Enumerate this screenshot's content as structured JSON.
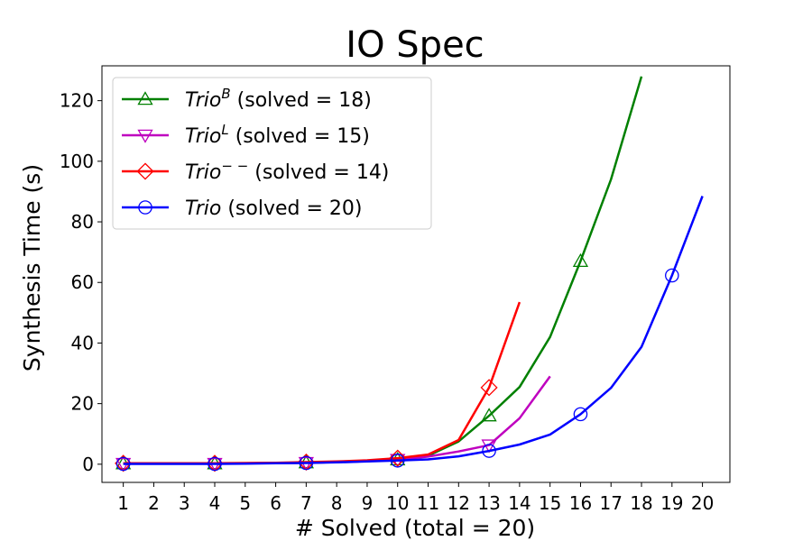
{
  "chart_data": {
    "type": "line",
    "title": "IO Spec",
    "xlabel": "# Solved (total = 20)",
    "ylabel": "Synthesis Time (s)",
    "xlim": [
      0.3,
      20.9
    ],
    "ylim": [
      -6,
      131.5
    ],
    "x_ticks": [
      1,
      2,
      3,
      4,
      5,
      6,
      7,
      8,
      9,
      10,
      11,
      12,
      13,
      14,
      15,
      16,
      17,
      18,
      19,
      20
    ],
    "y_ticks": [
      0,
      20,
      40,
      60,
      80,
      100,
      120
    ],
    "grid": false,
    "legend_position": "top-left",
    "series": [
      {
        "name": "Trio^B (solved = 18)",
        "name_base": "Trio",
        "name_sup": "B",
        "name_rest": " (solved = 18)",
        "color": "#008000",
        "marker": "triangle-up",
        "marker_every": 3,
        "x": [
          1,
          2,
          3,
          4,
          5,
          6,
          7,
          8,
          9,
          10,
          11,
          12,
          13,
          14,
          15,
          16,
          17,
          18
        ],
        "y": [
          0.2,
          0.2,
          0.2,
          0.2,
          0.3,
          0.4,
          0.5,
          0.7,
          1.0,
          1.5,
          2.8,
          7.5,
          16,
          25.5,
          42,
          67,
          94,
          128
        ]
      },
      {
        "name": "Trio^L (solved = 15)",
        "name_base": "Trio",
        "name_sup": "L",
        "name_rest": " (solved = 15)",
        "color": "#bf00bf",
        "marker": "triangle-down",
        "marker_every": 3,
        "x": [
          1,
          2,
          3,
          4,
          5,
          6,
          7,
          8,
          9,
          10,
          11,
          12,
          13,
          14,
          15
        ],
        "y": [
          0.2,
          0.2,
          0.2,
          0.2,
          0.3,
          0.4,
          0.5,
          0.7,
          1.0,
          1.5,
          2.5,
          4.2,
          6.3,
          15.2,
          29
        ]
      },
      {
        "name": "Trio^-- (solved = 14)",
        "name_base": "Trio",
        "name_sup": "− −",
        "name_rest": " (solved = 14)",
        "color": "#ff0000",
        "marker": "diamond",
        "marker_every": 3,
        "x": [
          1,
          2,
          3,
          4,
          5,
          6,
          7,
          8,
          9,
          10,
          11,
          12,
          13,
          14
        ],
        "y": [
          0.3,
          0.3,
          0.3,
          0.3,
          0.4,
          0.5,
          0.7,
          0.9,
          1.3,
          2.0,
          3.2,
          8.0,
          25.3,
          53.5
        ]
      },
      {
        "name": "Trio (solved = 20)",
        "name_base": "Trio",
        "name_sup": "",
        "name_rest": " (solved = 20)",
        "color": "#0000ff",
        "marker": "circle",
        "marker_every": 3,
        "x": [
          1,
          2,
          3,
          4,
          5,
          6,
          7,
          8,
          9,
          10,
          11,
          12,
          13,
          14,
          15,
          16,
          17,
          18,
          19,
          20
        ],
        "y": [
          0.1,
          0.1,
          0.1,
          0.1,
          0.2,
          0.3,
          0.4,
          0.6,
          0.9,
          1.2,
          1.6,
          2.6,
          4.4,
          6.5,
          9.8,
          16.5,
          25.2,
          38.7,
          62.3,
          88.5
        ]
      }
    ]
  }
}
